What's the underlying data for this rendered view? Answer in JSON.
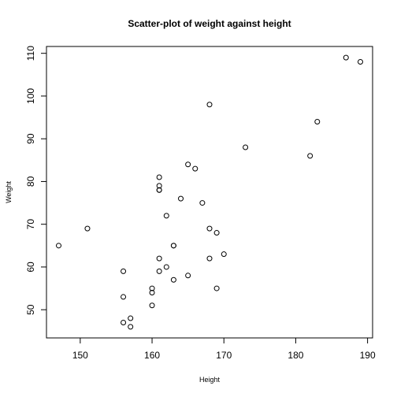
{
  "chart_data": {
    "type": "scatter",
    "title": "Scatter-plot of weight against height",
    "xlabel": "Height",
    "ylabel": "Weight",
    "xlim": [
      145.3,
      190.7
    ],
    "ylim": [
      43.4,
      111.6
    ],
    "xticks": [
      150,
      160,
      170,
      180,
      190
    ],
    "yticks": [
      50,
      60,
      70,
      80,
      90,
      100,
      110
    ],
    "grid": false,
    "point_style": "open-circle",
    "points": [
      {
        "x": 147,
        "y": 65
      },
      {
        "x": 151,
        "y": 69
      },
      {
        "x": 156,
        "y": 59
      },
      {
        "x": 156,
        "y": 53
      },
      {
        "x": 156,
        "y": 47
      },
      {
        "x": 157,
        "y": 48
      },
      {
        "x": 157,
        "y": 46
      },
      {
        "x": 160,
        "y": 55
      },
      {
        "x": 160,
        "y": 54
      },
      {
        "x": 160,
        "y": 51
      },
      {
        "x": 161,
        "y": 81
      },
      {
        "x": 161,
        "y": 79
      },
      {
        "x": 161,
        "y": 78
      },
      {
        "x": 161,
        "y": 78
      },
      {
        "x": 161,
        "y": 62
      },
      {
        "x": 161,
        "y": 59
      },
      {
        "x": 162,
        "y": 72
      },
      {
        "x": 162,
        "y": 60
      },
      {
        "x": 163,
        "y": 65
      },
      {
        "x": 163,
        "y": 65
      },
      {
        "x": 163,
        "y": 57
      },
      {
        "x": 164,
        "y": 76
      },
      {
        "x": 165,
        "y": 84
      },
      {
        "x": 165,
        "y": 58
      },
      {
        "x": 166,
        "y": 83
      },
      {
        "x": 167,
        "y": 75
      },
      {
        "x": 168,
        "y": 98
      },
      {
        "x": 168,
        "y": 69
      },
      {
        "x": 168,
        "y": 62
      },
      {
        "x": 169,
        "y": 68
      },
      {
        "x": 169,
        "y": 55
      },
      {
        "x": 170,
        "y": 63
      },
      {
        "x": 173,
        "y": 88
      },
      {
        "x": 182,
        "y": 86
      },
      {
        "x": 183,
        "y": 94
      },
      {
        "x": 187,
        "y": 109
      },
      {
        "x": 189,
        "y": 108
      }
    ]
  }
}
